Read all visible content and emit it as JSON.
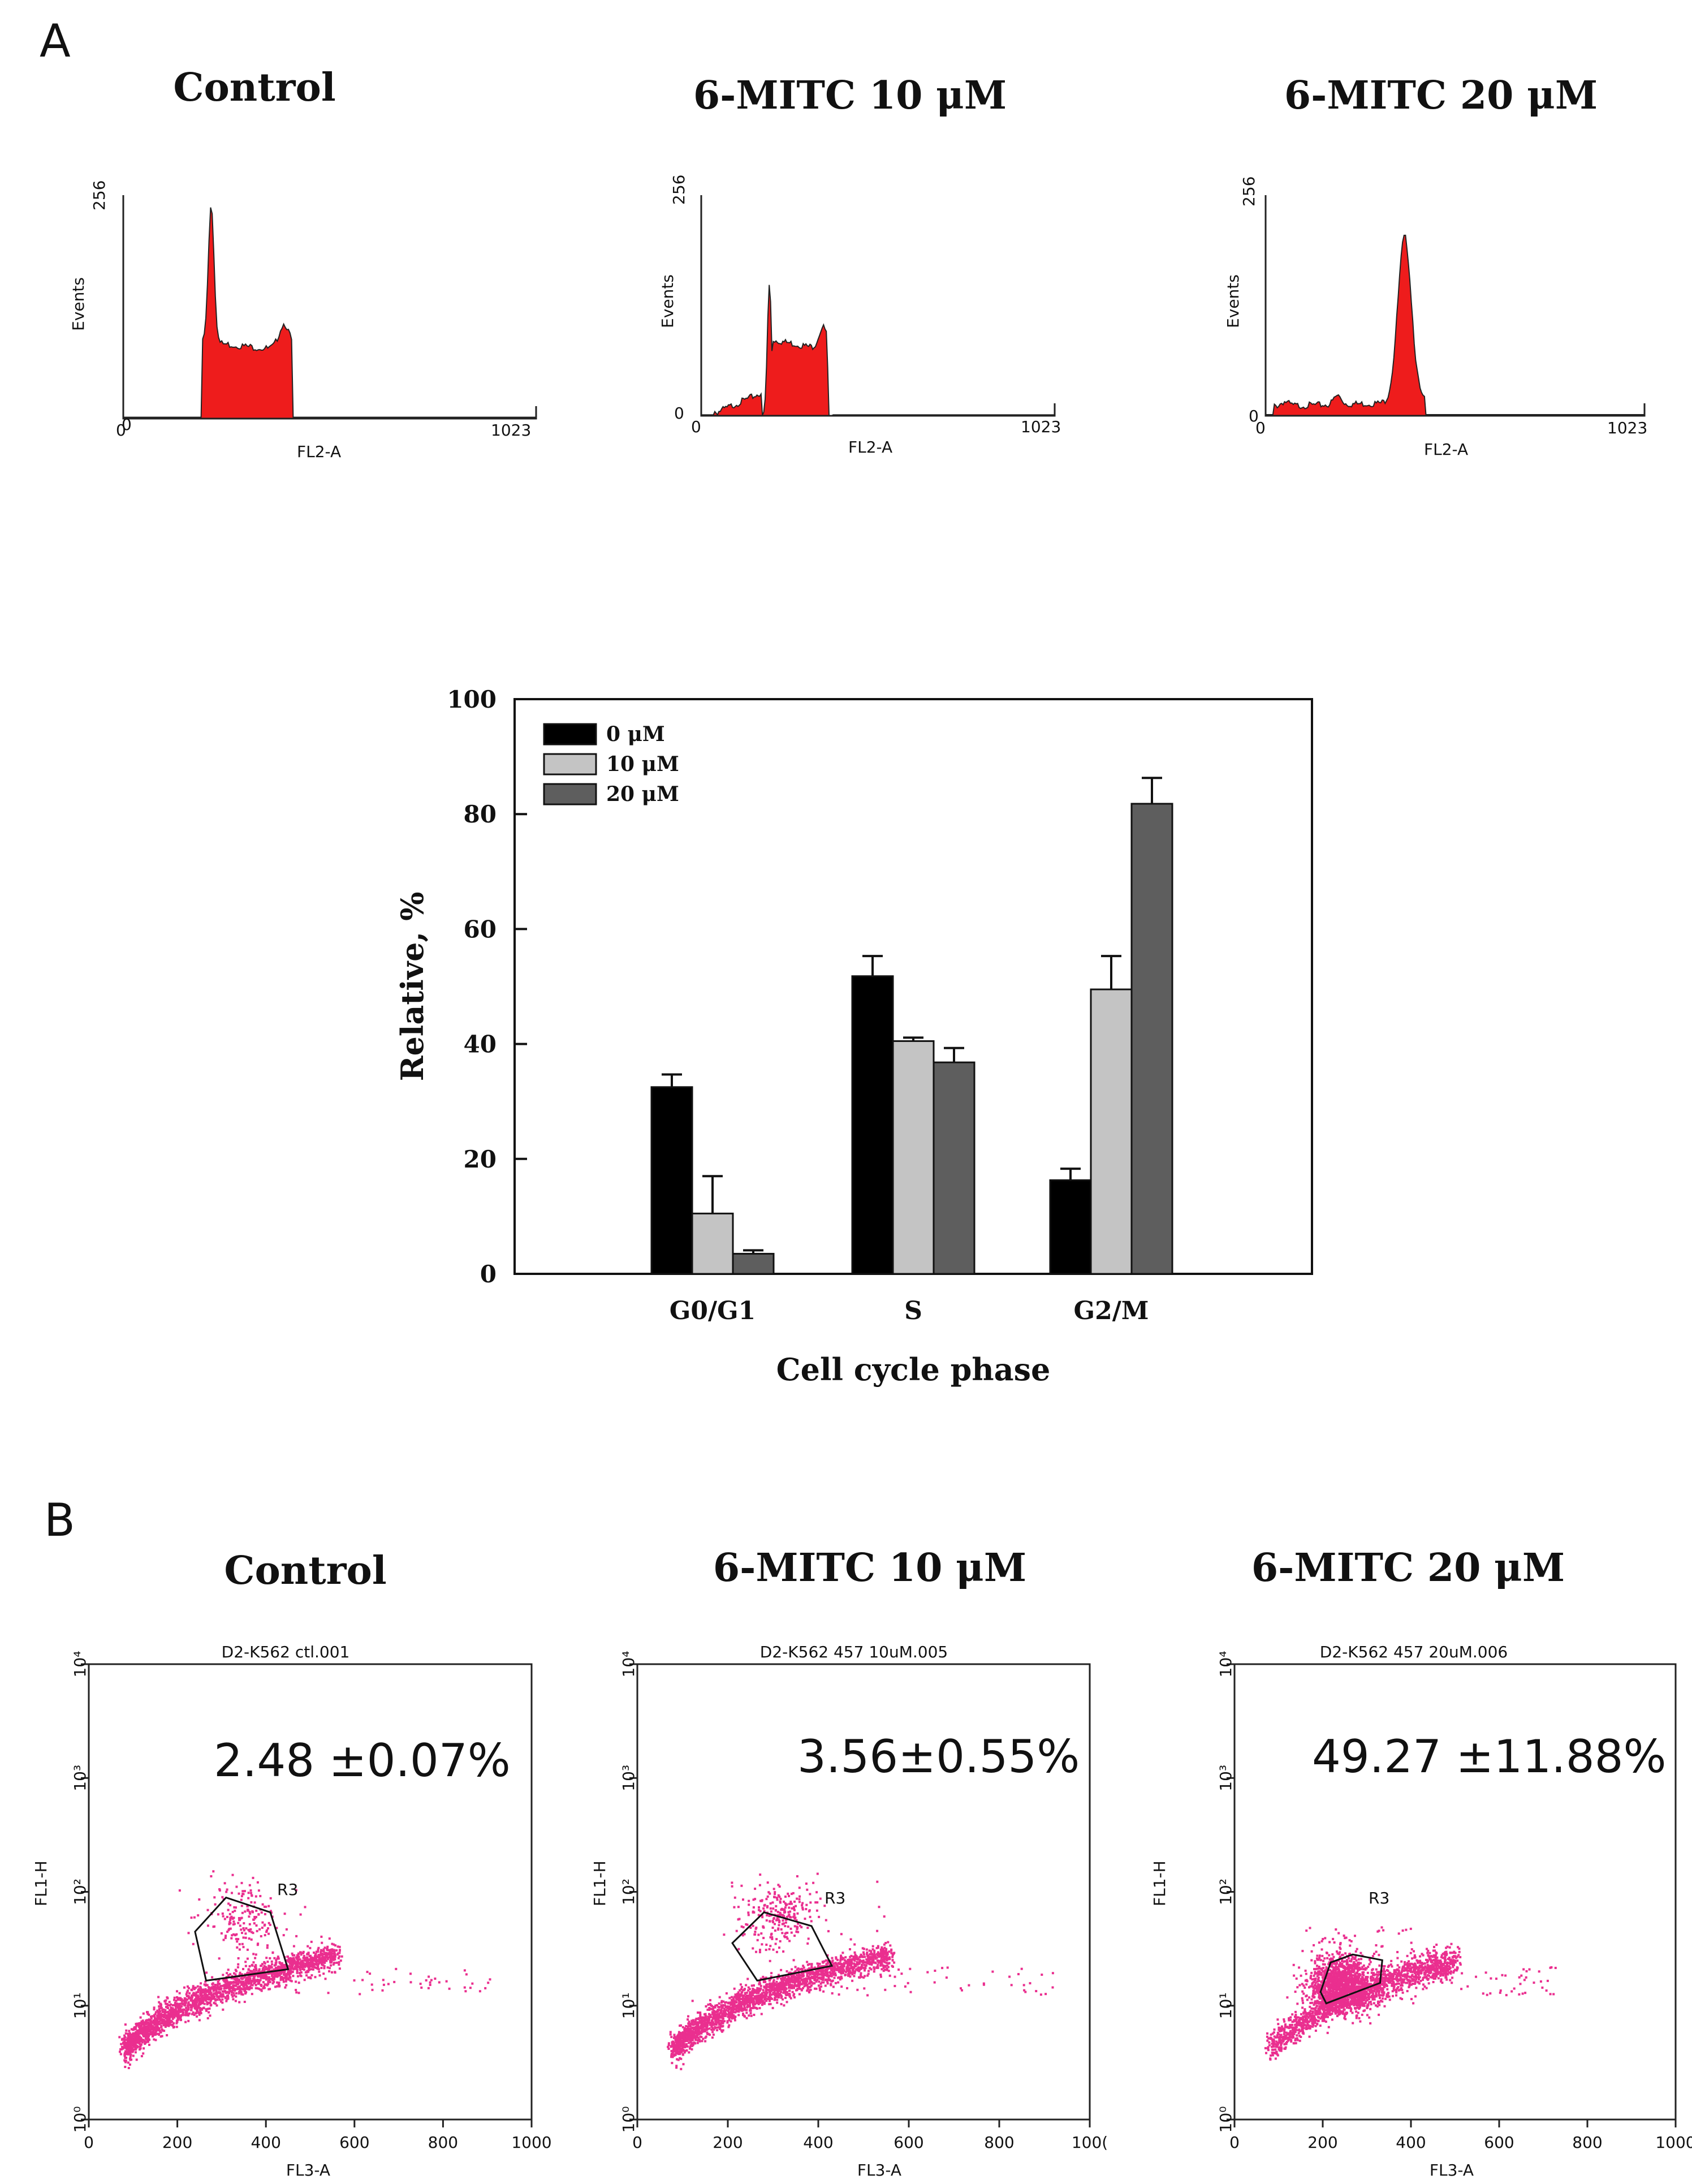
{
  "panels": {
    "a": "A",
    "b": "B"
  },
  "colors": {
    "histogram": "#ee1c1c",
    "dots": "#ea2f8f",
    "bar_0": "#000000",
    "bar_10": "#c4c4c4",
    "bar_20": "#5e5e5e"
  },
  "histograms": [
    {
      "title": "Control",
      "y_label": "Events",
      "x_label": "FL2-A",
      "y_min": "0",
      "y_max": "256",
      "x_min": "0",
      "x_max": "1023",
      "shape": "control"
    },
    {
      "title": "6-MITC 10 μM",
      "y_label": "Events",
      "x_label": "FL2-A",
      "y_min": "0",
      "y_max": "256",
      "x_min": "0",
      "x_max": "1023",
      "shape": "m10"
    },
    {
      "title": "6-MITC 20 μM",
      "y_label": "Events",
      "x_label": "FL2-A",
      "y_min": "0",
      "y_max": "256",
      "x_min": "0",
      "x_max": "1023",
      "shape": "m20"
    }
  ],
  "chart_data": {
    "type": "bar",
    "title": "",
    "xlabel": "Cell cycle phase",
    "ylabel": "Relative, %",
    "ylim": [
      0,
      100
    ],
    "yticks": [
      "0",
      "20",
      "40",
      "60",
      "80",
      "100"
    ],
    "categories": [
      "G0/G1",
      "S",
      "G2/M"
    ],
    "legend_position": "top-left",
    "series": [
      {
        "name": "0 μM",
        "color": "#000000",
        "values": [
          32.5,
          51.8,
          16.3
        ],
        "errors": [
          2.2,
          3.5,
          2.0
        ]
      },
      {
        "name": "10 μM",
        "color": "#c4c4c4",
        "values": [
          10.5,
          40.5,
          49.5
        ],
        "errors": [
          6.5,
          0.6,
          5.8
        ]
      },
      {
        "name": "20 μM",
        "color": "#5e5e5e",
        "values": [
          3.5,
          36.8,
          81.8
        ],
        "errors": [
          0.6,
          2.5,
          4.5
        ]
      }
    ]
  },
  "scatter_plots": [
    {
      "title": "Control",
      "file": "D2-K562 ctl.001",
      "percentage": "2.48 ±0.07%",
      "gate": "R3",
      "y_label": "FL1-H",
      "x_label": "FL3-A",
      "x_ticks": [
        "0",
        "200",
        "400",
        "600",
        "800",
        "1000"
      ],
      "y_ticks": [
        "10⁰",
        "10¹",
        "10²",
        "10³",
        "10⁴"
      ],
      "variant": "ctl"
    },
    {
      "title": "6-MITC 10 μM",
      "file": "D2-K562 457 10uM.005",
      "percentage": "3.56±0.55%",
      "gate": "R3",
      "y_label": "FL1-H",
      "x_label": "FL3-A",
      "x_ticks": [
        "0",
        "200",
        "400",
        "600",
        "800",
        "100("
      ],
      "y_ticks": [
        "10⁰",
        "10¹",
        "10²",
        "10³",
        "10⁴"
      ],
      "variant": "m10"
    },
    {
      "title": "6-MITC 20 μM",
      "file": "D2-K562 457 20uM.006",
      "percentage": "49.27 ±11.88%",
      "gate": "R3",
      "y_label": "FL1-H",
      "x_label": "FL3-A",
      "x_ticks": [
        "0",
        "200",
        "400",
        "600",
        "800",
        "1000"
      ],
      "y_ticks": [
        "10⁰",
        "10¹",
        "10²",
        "10³",
        "10⁴"
      ],
      "variant": "m20"
    }
  ]
}
